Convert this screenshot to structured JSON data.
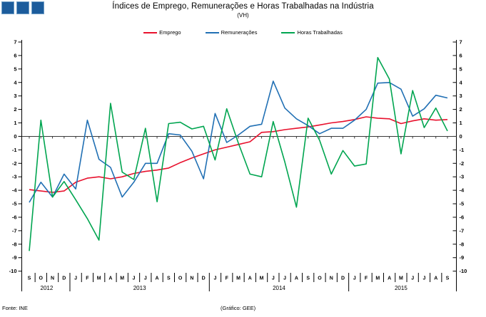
{
  "header": {
    "title": "Índices de Emprego, Remunerações e Horas Trabalhadas na Indústria",
    "subtitle": "(VH)"
  },
  "logo": {
    "square_count": 3,
    "color": "#1c5c9c",
    "border_color": "#6f9ec6"
  },
  "footer": {
    "source": "Fonte: INE",
    "credit": "(Gráfico: GEE)"
  },
  "chart_data": {
    "type": "line",
    "title": "Índices de Emprego, Remunerações e Horas Trabalhadas na Indústria",
    "subtitle": "(VH)",
    "legend_position": "top",
    "grid": false,
    "ylim": [
      -10,
      7
    ],
    "yticks": [
      7,
      6,
      5,
      4,
      3,
      2,
      1,
      0,
      -1,
      -2,
      -3,
      -4,
      -5,
      -6,
      -7,
      -8,
      -9,
      -10
    ],
    "x_labels": [
      "S",
      "O",
      "N",
      "D",
      "J",
      "F",
      "M",
      "A",
      "M",
      "J",
      "J",
      "A",
      "S",
      "O",
      "N",
      "D",
      "J",
      "F",
      "M",
      "A",
      "M",
      "J",
      "J",
      "A",
      "S",
      "O",
      "N",
      "D",
      "J",
      "F",
      "M",
      "A",
      "M",
      "J",
      "J",
      "A",
      "S"
    ],
    "year_groups": [
      {
        "year": "2012",
        "start": 0,
        "count": 4
      },
      {
        "year": "2013",
        "start": 4,
        "count": 12
      },
      {
        "year": "2014",
        "start": 16,
        "count": 12
      },
      {
        "year": "2015",
        "start": 28,
        "count": 9
      }
    ],
    "series": [
      {
        "name": "Emprego",
        "color": "#e8112d",
        "values": [
          -3.95,
          -4.05,
          -4.15,
          -4.05,
          -3.4,
          -3.1,
          -3.0,
          -3.15,
          -3.0,
          -2.75,
          -2.6,
          -2.5,
          -2.35,
          -1.95,
          -1.6,
          -1.3,
          -1.0,
          -0.8,
          -0.6,
          -0.4,
          0.3,
          0.35,
          0.5,
          0.6,
          0.7,
          0.85,
          1.0,
          1.1,
          1.25,
          1.45,
          1.35,
          1.3,
          0.95,
          1.15,
          1.3,
          1.2,
          1.25
        ]
      },
      {
        "name": "Remunerações",
        "color": "#2170b4",
        "values": [
          -4.9,
          -3.4,
          -4.5,
          -2.8,
          -3.9,
          1.2,
          -1.7,
          -2.3,
          -4.5,
          -3.4,
          -2.0,
          -2.0,
          0.2,
          0.1,
          -1.1,
          -3.15,
          1.7,
          -0.45,
          0.1,
          0.75,
          0.9,
          4.1,
          2.1,
          1.3,
          0.8,
          0.2,
          0.6,
          0.6,
          1.2,
          2.0,
          3.95,
          4.0,
          3.5,
          1.5,
          2.05,
          3.05,
          2.85
        ]
      },
      {
        "name": "Horas Trabalhadas",
        "color": "#00a550",
        "values": [
          -8.5,
          1.2,
          -4.5,
          -3.35,
          -4.7,
          -6.1,
          -7.7,
          2.45,
          -2.65,
          -3.2,
          0.6,
          -4.85,
          0.95,
          1.05,
          0.55,
          0.75,
          -1.75,
          2.05,
          -0.5,
          -2.8,
          -3.0,
          1.1,
          -1.9,
          -5.25,
          1.35,
          -0.3,
          -2.8,
          -1.05,
          -2.2,
          -2.05,
          5.85,
          4.25,
          -1.3,
          3.4,
          0.65,
          2.1,
          0.4
        ]
      }
    ]
  }
}
